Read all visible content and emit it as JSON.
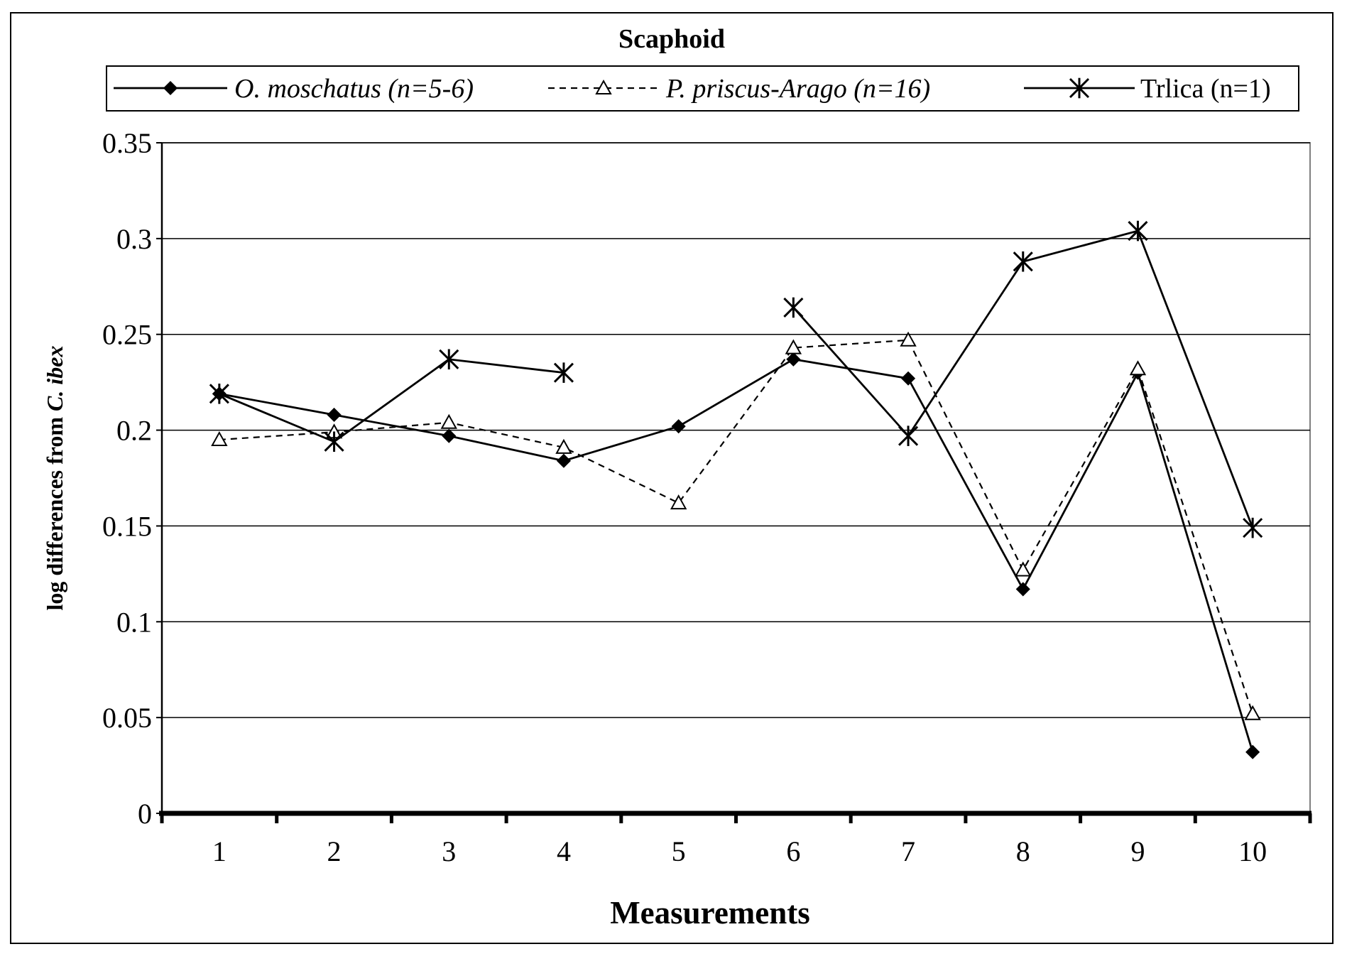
{
  "chart_data": {
    "type": "line",
    "title": "Scaphoid",
    "xlabel": "Measurements",
    "ylabel": {
      "prefix": "log differences from ",
      "italic": "C. ibex"
    },
    "categories": [
      "1",
      "2",
      "3",
      "4",
      "5",
      "6",
      "7",
      "8",
      "9",
      "10"
    ],
    "ylim": [
      0,
      0.35
    ],
    "yticks": [
      "0",
      "0.05",
      "0.1",
      "0.15",
      "0.2",
      "0.25",
      "0.3",
      "0.35"
    ],
    "grid": true,
    "legend": "top",
    "series": [
      {
        "key": "omos",
        "name_italic": "O. moschatus (n=5-6)",
        "name_plain": "",
        "marker": "diamond",
        "dash": false,
        "color": "#000000",
        "values": [
          0.219,
          0.208,
          0.197,
          0.184,
          0.202,
          0.237,
          0.227,
          0.117,
          0.23,
          0.032
        ]
      },
      {
        "key": "ppri",
        "name_italic": "P. priscus-Arago (n=16)",
        "name_plain": "",
        "marker": "triangle",
        "dash": true,
        "color": "#000000",
        "values": [
          0.195,
          0.199,
          0.204,
          0.191,
          0.162,
          0.243,
          0.247,
          0.127,
          0.232,
          0.052
        ]
      },
      {
        "key": "trlica",
        "name_italic": "",
        "name_plain": "Trlica (n=1)",
        "marker": "asterisk",
        "dash": false,
        "color": "#000000",
        "values": [
          0.219,
          0.194,
          0.237,
          0.23,
          null,
          0.264,
          0.197,
          0.288,
          0.304,
          0.149
        ]
      }
    ]
  }
}
